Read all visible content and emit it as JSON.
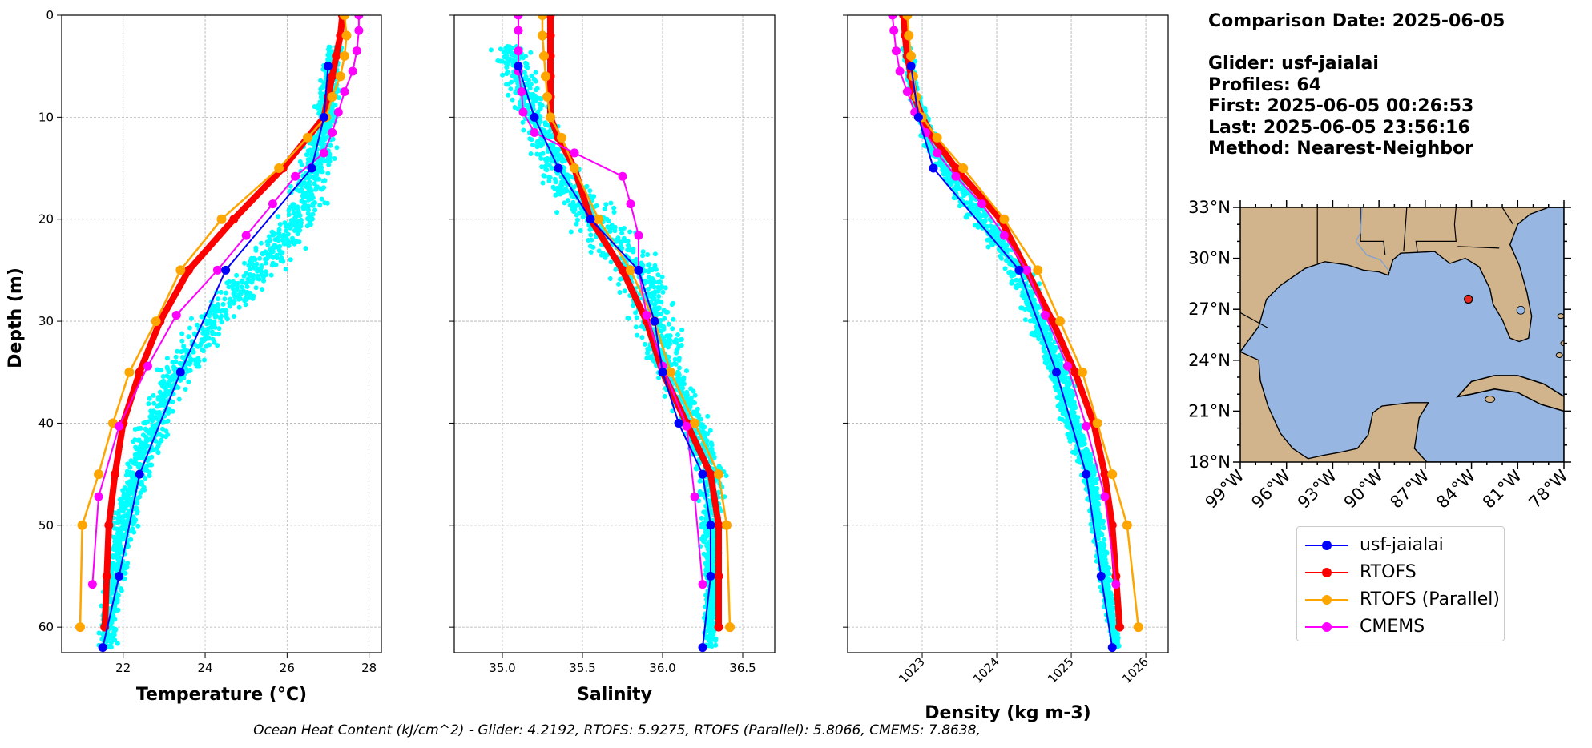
{
  "info": {
    "comparison_date": "Comparison Date: 2025-06-05",
    "glider": "Glider: usf-jaialai",
    "profiles": "Profiles: 64",
    "first": "First: 2025-06-05 00:26:53",
    "last": "Last: 2025-06-05 23:56:16",
    "method": "Method: Nearest-Neighbor"
  },
  "footer": "Ocean Heat Content (kJ/cm^2) - Glider: 4.2192,  RTOFS: 5.9275,  RTOFS (Parallel): 5.8066,  CMEMS: 7.8638,",
  "legend": [
    {
      "label": "usf-jaialai",
      "color": "#0000ff"
    },
    {
      "label": "RTOFS",
      "color": "#ff0000"
    },
    {
      "label": "RTOFS (Parallel)",
      "color": "#ffa500"
    },
    {
      "label": "CMEMS",
      "color": "#ff00ff"
    }
  ],
  "colors": {
    "glider_raw": "#00ffff",
    "land": "#d2b48c",
    "ocean": "#97b6e1",
    "station": "#e8261f"
  },
  "map": {
    "lat_ticks": [
      "18°N",
      "21°N",
      "24°N",
      "27°N",
      "30°N",
      "33°N"
    ],
    "lon_ticks": [
      "99°W",
      "96°W",
      "93°W",
      "90°W",
      "87°W",
      "84°W",
      "81°W",
      "78°W"
    ],
    "station": {
      "lon": -84.2,
      "lat": 27.6
    }
  },
  "chart_data": [
    {
      "type": "line",
      "xlabel": "Temperature (°C)",
      "ylabel": "Depth (m)",
      "xlim": [
        20.5,
        28.3
      ],
      "ylim": [
        62.5,
        0
      ],
      "xticks": [
        22,
        24,
        26,
        28
      ],
      "yticks": [
        0,
        10,
        20,
        30,
        40,
        50,
        60
      ],
      "grid": true,
      "raw_series": {
        "name": "usf-jaialai",
        "depth": [
          3,
          10,
          15,
          20,
          25,
          30,
          35,
          40,
          45,
          50,
          55,
          60,
          62
        ],
        "center": [
          27.15,
          26.95,
          26.7,
          26.3,
          25.3,
          24.2,
          23.35,
          22.75,
          22.35,
          22.0,
          21.8,
          21.65,
          21.6
        ],
        "spread": [
          0.25,
          0.35,
          0.55,
          0.75,
          0.8,
          0.7,
          0.6,
          0.5,
          0.45,
          0.4,
          0.35,
          0.3,
          0.3
        ]
      },
      "series": [
        {
          "name": "usf-jaialai",
          "depth": [
            5,
            10,
            15,
            25,
            35,
            45,
            55,
            62
          ],
          "values": [
            27.0,
            26.9,
            26.6,
            24.5,
            23.4,
            22.4,
            21.9,
            21.5
          ]
        },
        {
          "name": "RTOFS",
          "depth": [
            0,
            2,
            4,
            6,
            8,
            10,
            12,
            15,
            20,
            25,
            30,
            35,
            40,
            45,
            50,
            55,
            60
          ],
          "values": [
            27.35,
            27.3,
            27.2,
            27.1,
            27.0,
            26.9,
            26.5,
            25.9,
            24.7,
            23.6,
            22.9,
            22.4,
            22.0,
            21.8,
            21.65,
            21.6,
            21.55
          ]
        },
        {
          "name": "RTOFS (Parallel)",
          "depth": [
            0,
            2,
            4,
            6,
            8,
            10,
            12,
            15,
            20,
            25,
            30,
            35,
            40,
            45,
            50,
            60
          ],
          "values": [
            27.4,
            27.45,
            27.4,
            27.3,
            27.1,
            26.95,
            26.5,
            25.8,
            24.4,
            23.4,
            22.8,
            22.15,
            21.75,
            21.4,
            21.0,
            20.95
          ]
        },
        {
          "name": "CMEMS",
          "depth": [
            0,
            1.5,
            3.5,
            5.5,
            7.5,
            9.5,
            11.5,
            13.5,
            15.8,
            18.5,
            21.6,
            25.0,
            29.4,
            34.4,
            40.3,
            47.2,
            55.8
          ],
          "values": [
            27.75,
            27.75,
            27.7,
            27.6,
            27.4,
            27.25,
            27.1,
            26.9,
            26.2,
            25.65,
            25.0,
            24.3,
            23.3,
            22.6,
            21.9,
            21.4,
            21.25
          ]
        }
      ]
    },
    {
      "type": "line",
      "xlabel": "Salinity",
      "xlim": [
        34.7,
        36.7
      ],
      "ylim": [
        62.5,
        0
      ],
      "xticks": [
        35.0,
        35.5,
        36.0,
        36.5
      ],
      "grid": true,
      "raw_series": {
        "name": "usf-jaialai",
        "depth": [
          3,
          6,
          10,
          15,
          20,
          25,
          30,
          35,
          40,
          45,
          50,
          55,
          60,
          62
        ],
        "center": [
          35.05,
          35.1,
          35.2,
          35.35,
          35.55,
          35.85,
          35.95,
          36.05,
          36.2,
          36.3,
          36.3,
          36.3,
          36.3,
          36.3
        ],
        "spread": [
          0.15,
          0.15,
          0.15,
          0.2,
          0.25,
          0.25,
          0.2,
          0.15,
          0.12,
          0.12,
          0.1,
          0.06,
          0.05,
          0.05
        ]
      },
      "series": [
        {
          "name": "usf-jaialai",
          "depth": [
            5,
            10,
            15,
            20,
            25,
            30,
            35,
            40,
            45,
            50,
            55,
            62
          ],
          "values": [
            35.1,
            35.2,
            35.35,
            35.55,
            35.85,
            35.95,
            36.0,
            36.1,
            36.25,
            36.3,
            36.3,
            36.25
          ]
        },
        {
          "name": "RTOFS",
          "depth": [
            0,
            2,
            4,
            6,
            8,
            10,
            12,
            15,
            20,
            25,
            30,
            35,
            40,
            45,
            50,
            55,
            60
          ],
          "values": [
            35.3,
            35.3,
            35.3,
            35.3,
            35.3,
            35.3,
            35.35,
            35.45,
            35.55,
            35.75,
            35.9,
            36.0,
            36.15,
            36.3,
            36.35,
            36.35,
            36.35
          ]
        },
        {
          "name": "RTOFS (Parallel)",
          "depth": [
            0,
            2,
            4,
            6,
            8,
            10,
            12,
            15,
            20,
            25,
            30,
            35,
            40,
            45,
            50,
            60
          ],
          "values": [
            35.25,
            35.25,
            35.26,
            35.27,
            35.28,
            35.3,
            35.37,
            35.45,
            35.6,
            35.8,
            35.95,
            36.05,
            36.2,
            36.35,
            36.4,
            36.42
          ]
        },
        {
          "name": "CMEMS",
          "depth": [
            0,
            1.5,
            3.5,
            5.5,
            7.5,
            9.5,
            11.5,
            13.5,
            15.8,
            18.5,
            21.6,
            25.0,
            29.4,
            34.4,
            40.3,
            47.2,
            55.8
          ],
          "values": [
            35.1,
            35.1,
            35.1,
            35.1,
            35.12,
            35.13,
            35.2,
            35.45,
            35.75,
            35.8,
            35.85,
            35.85,
            35.9,
            36.0,
            36.15,
            36.2,
            36.25
          ]
        }
      ]
    },
    {
      "type": "line",
      "xlabel": "Density (kg m-3)",
      "xlim": [
        1022.0,
        1026.3
      ],
      "ylim": [
        62.5,
        0
      ],
      "xticks": [
        1023,
        1024,
        1025,
        1026
      ],
      "grid": true,
      "raw_series": {
        "name": "usf-jaialai",
        "depth": [
          3,
          8,
          12,
          15,
          20,
          25,
          30,
          35,
          40,
          45,
          50,
          55,
          60,
          62
        ],
        "center": [
          1022.8,
          1022.9,
          1023.1,
          1023.3,
          1023.8,
          1024.3,
          1024.55,
          1024.85,
          1025.0,
          1025.25,
          1025.35,
          1025.45,
          1025.55,
          1025.6
        ],
        "spread": [
          0.1,
          0.1,
          0.15,
          0.2,
          0.25,
          0.25,
          0.2,
          0.2,
          0.18,
          0.15,
          0.12,
          0.1,
          0.08,
          0.08
        ]
      },
      "series": [
        {
          "name": "usf-jaialai",
          "depth": [
            5,
            10,
            15,
            25,
            35,
            45,
            55,
            62
          ],
          "values": [
            1022.85,
            1022.95,
            1023.15,
            1024.3,
            1024.8,
            1025.2,
            1025.4,
            1025.55
          ]
        },
        {
          "name": "RTOFS",
          "depth": [
            0,
            2,
            4,
            6,
            8,
            10,
            12,
            15,
            20,
            25,
            30,
            35,
            40,
            45,
            50,
            55,
            60
          ],
          "values": [
            1022.75,
            1022.77,
            1022.8,
            1022.85,
            1022.9,
            1023.0,
            1023.15,
            1023.45,
            1024.05,
            1024.4,
            1024.75,
            1025.05,
            1025.3,
            1025.45,
            1025.55,
            1025.6,
            1025.65
          ]
        },
        {
          "name": "RTOFS (Parallel)",
          "depth": [
            0,
            2,
            4,
            6,
            8,
            10,
            12,
            15,
            20,
            25,
            30,
            35,
            40,
            45,
            50,
            60
          ],
          "values": [
            1022.8,
            1022.82,
            1022.85,
            1022.88,
            1022.92,
            1023.0,
            1023.2,
            1023.55,
            1024.1,
            1024.55,
            1024.85,
            1025.15,
            1025.35,
            1025.55,
            1025.75,
            1025.9
          ]
        },
        {
          "name": "CMEMS",
          "depth": [
            0,
            1.5,
            3.5,
            5.5,
            7.5,
            9.5,
            11.5,
            13.5,
            15.8,
            18.5,
            21.6,
            25.0,
            29.4,
            34.4,
            40.3,
            47.2,
            55.8
          ],
          "values": [
            1022.6,
            1022.62,
            1022.65,
            1022.7,
            1022.8,
            1022.9,
            1023.05,
            1023.2,
            1023.45,
            1023.8,
            1024.1,
            1024.4,
            1024.65,
            1024.95,
            1025.2,
            1025.45,
            1025.6
          ]
        }
      ]
    }
  ]
}
